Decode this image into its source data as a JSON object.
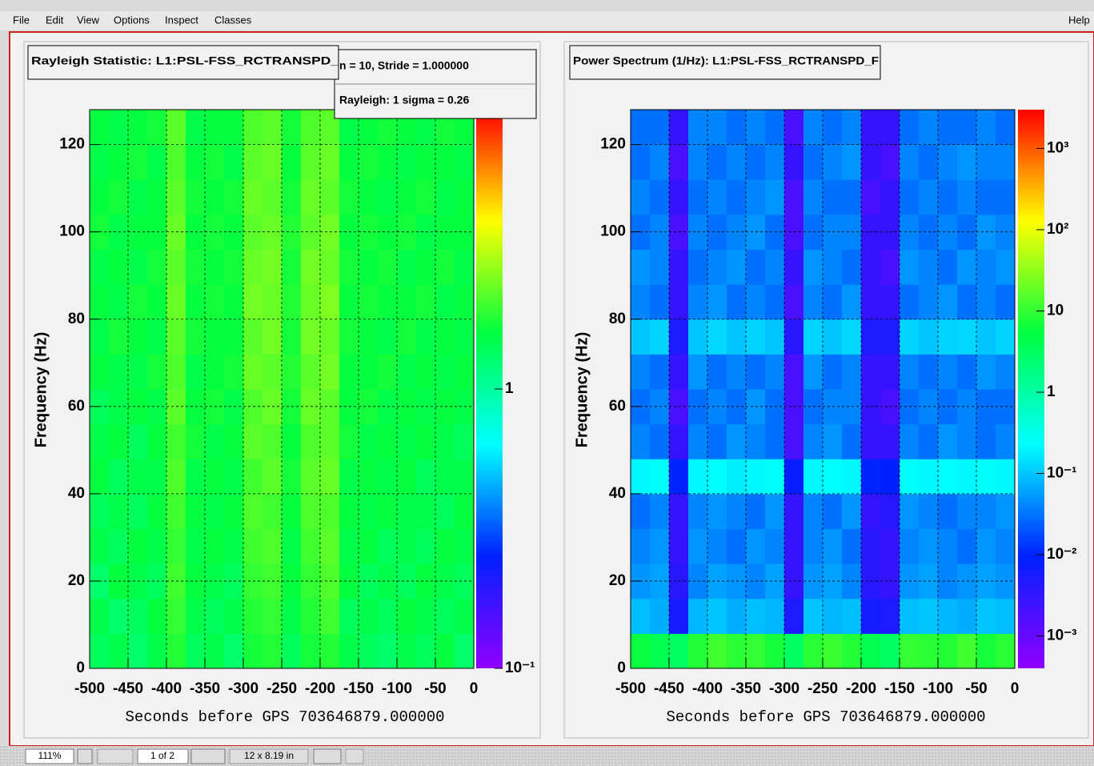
{
  "menu": [
    "File",
    "Edit",
    "View",
    "Options",
    "Inspect",
    "Classes"
  ],
  "help": "Help",
  "status_bar": {
    "zoom": "111%",
    "page": "1 of 2",
    "size": "12 x 8.19 in"
  },
  "chart_data": [
    {
      "type": "heatmap",
      "title": "Rayleigh Statistic:  L1:PSL-FSS_RCTRANSPD_",
      "stats": [
        "n = 10,  Stride = 1.000000",
        "Rayleigh: 1 sigma = 0.26"
      ],
      "x_label": "Seconds before GPS 703646879.000000",
      "y_label": "Frequency (Hz)",
      "xlim": [
        -500,
        0
      ],
      "ylim": [
        0,
        128
      ],
      "xticks": [
        -500,
        -450,
        -400,
        -350,
        -300,
        -250,
        -200,
        -150,
        -100,
        -50,
        0
      ],
      "yticks": [
        0,
        20,
        40,
        60,
        80,
        100,
        120
      ],
      "grid": true,
      "zlim": [
        0.1,
        10
      ],
      "zlog": true,
      "zticks": [
        {
          "value": 0.1,
          "label": "10⁻¹"
        },
        1
      ],
      "colors": [
        "#9000ff",
        "#0020ff",
        "#00ffff",
        "#00ff40",
        "#ffff00",
        "#ff0000"
      ],
      "xbins": [
        -500,
        -475,
        -450,
        -425,
        -400,
        -375,
        -350,
        -325,
        -300,
        -275,
        -250,
        -225,
        -200,
        -175,
        -150,
        -125,
        -100,
        -75,
        -50,
        -25,
        0
      ],
      "ybins": [
        0,
        8,
        16,
        24,
        32,
        40,
        48,
        56,
        64,
        72,
        80,
        88,
        96,
        104,
        112,
        120,
        128
      ],
      "z": [
        [
          1.4,
          1.5,
          1.3,
          1.5,
          1.8,
          1.4,
          1.5,
          1.3,
          1.7,
          1.8,
          1.4,
          1.7,
          1.8,
          1.5,
          1.4,
          1.3,
          1.5,
          1.4,
          1.6,
          1.3
        ],
        [
          1.5,
          1.3,
          1.4,
          1.6,
          1.9,
          1.5,
          1.4,
          1.5,
          1.8,
          1.9,
          1.5,
          1.8,
          2,
          1.4,
          1.5,
          1.4,
          1.6,
          1.5,
          1.4,
          1.5
        ],
        [
          1.3,
          1.6,
          1.5,
          1.4,
          2,
          1.6,
          1.5,
          1.4,
          1.9,
          2,
          1.6,
          1.9,
          2.1,
          1.6,
          1.4,
          1.5,
          1.4,
          1.6,
          1.5,
          1.4
        ],
        [
          1.5,
          1.4,
          1.6,
          1.5,
          1.9,
          1.5,
          1.6,
          1.5,
          2,
          2.1,
          1.5,
          2,
          2.2,
          1.5,
          1.6,
          1.4,
          1.5,
          1.4,
          1.6,
          1.5
        ],
        [
          1.4,
          1.5,
          1.4,
          1.6,
          2,
          1.6,
          1.5,
          1.6,
          2.1,
          2,
          1.6,
          2.1,
          2.1,
          1.6,
          1.5,
          1.6,
          1.5,
          1.5,
          1.4,
          1.6
        ],
        [
          1.6,
          1.4,
          1.5,
          1.5,
          2.1,
          1.5,
          1.6,
          1.5,
          2,
          2.2,
          1.7,
          2.2,
          2.3,
          1.5,
          1.6,
          1.5,
          1.6,
          1.4,
          1.5,
          1.5
        ],
        [
          1.5,
          1.6,
          1.4,
          1.6,
          2,
          1.7,
          1.5,
          1.6,
          2.2,
          2.1,
          1.6,
          2.1,
          2.2,
          1.7,
          1.5,
          1.6,
          1.5,
          1.6,
          1.5,
          1.4
        ],
        [
          1.4,
          1.5,
          1.6,
          1.5,
          2.2,
          1.6,
          1.7,
          1.5,
          2.1,
          2.3,
          1.7,
          2.3,
          2.2,
          1.6,
          1.7,
          1.5,
          1.6,
          1.5,
          1.6,
          1.5
        ],
        [
          1.6,
          1.5,
          1.5,
          1.7,
          2.1,
          1.5,
          1.6,
          1.7,
          2.3,
          2.2,
          1.8,
          2.2,
          2.4,
          1.6,
          1.6,
          1.7,
          1.5,
          1.6,
          1.5,
          1.6
        ],
        [
          1.5,
          1.7,
          1.6,
          1.5,
          2.2,
          1.7,
          1.6,
          1.6,
          2.2,
          2.4,
          1.7,
          2.4,
          2.3,
          1.7,
          1.6,
          1.5,
          1.7,
          1.5,
          1.6,
          1.5
        ],
        [
          1.6,
          1.5,
          1.7,
          1.6,
          2.3,
          1.6,
          1.7,
          1.6,
          2.4,
          2.3,
          1.8,
          2.3,
          2.5,
          1.6,
          1.7,
          1.6,
          1.6,
          1.7,
          1.5,
          1.6
        ],
        [
          1.5,
          1.6,
          1.5,
          1.7,
          2.2,
          1.7,
          1.6,
          1.7,
          2.3,
          2.4,
          1.7,
          2.4,
          2.3,
          1.7,
          1.6,
          1.7,
          1.5,
          1.6,
          1.7,
          1.5
        ],
        [
          1.7,
          1.5,
          1.6,
          1.6,
          2.3,
          1.6,
          1.7,
          1.6,
          2.2,
          2.3,
          1.8,
          2.2,
          2.4,
          1.6,
          1.7,
          1.6,
          1.7,
          1.5,
          1.6,
          1.6
        ],
        [
          1.6,
          1.7,
          1.5,
          1.6,
          2.2,
          1.7,
          1.6,
          1.7,
          2.3,
          2.2,
          1.7,
          2.3,
          2.2,
          1.7,
          1.6,
          1.5,
          1.6,
          1.7,
          1.5,
          1.6
        ],
        [
          1.5,
          1.6,
          1.7,
          1.5,
          2.1,
          1.6,
          1.7,
          1.5,
          2.2,
          2.3,
          1.6,
          2.2,
          2.3,
          1.6,
          1.7,
          1.6,
          1.5,
          1.6,
          1.6,
          1.5
        ],
        [
          1.6,
          1.5,
          1.6,
          1.7,
          2.2,
          1.5,
          1.6,
          1.6,
          2.1,
          2.2,
          1.7,
          2.1,
          2.2,
          1.5,
          1.6,
          1.7,
          1.6,
          1.5,
          1.7,
          1.6
        ]
      ]
    },
    {
      "type": "heatmap",
      "title": "Power Spectrum (1/Hz):  L1:PSL-FSS_RCTRANSPD_F",
      "x_label": "Seconds before GPS 703646879.000000",
      "y_label": "Frequency (Hz)",
      "xlim": [
        -500,
        0
      ],
      "ylim": [
        0,
        128
      ],
      "xticks": [
        -500,
        -450,
        -400,
        -350,
        -300,
        -250,
        -200,
        -150,
        -100,
        -50,
        0
      ],
      "yticks": [
        0,
        20,
        40,
        60,
        80,
        100,
        120
      ],
      "grid": true,
      "zlim": [
        0.0004,
        3000
      ],
      "zlog": true,
      "zticks": [
        {
          "value": 0.001,
          "label": "10⁻³"
        },
        {
          "value": 0.01,
          "label": "10⁻²"
        },
        {
          "value": 0.1,
          "label": "10⁻¹"
        },
        1,
        10,
        {
          "value": 100,
          "label": "10²"
        },
        {
          "value": 1000,
          "label": "10³"
        }
      ],
      "colors": [
        "#9000ff",
        "#0020ff",
        "#00ffff",
        "#00ff40",
        "#ffff00",
        "#ff0000"
      ],
      "xbins": [
        -500,
        -475,
        -450,
        -425,
        -400,
        -375,
        -350,
        -325,
        -300,
        -275,
        -250,
        -225,
        -200,
        -175,
        -150,
        -125,
        -100,
        -75,
        -50,
        -25,
        0
      ],
      "ybins": [
        0,
        8,
        16,
        24,
        32,
        40,
        48,
        56,
        64,
        72,
        80,
        88,
        96,
        104,
        112,
        120,
        128
      ],
      "z": [
        [
          6,
          4,
          3,
          8,
          12,
          9,
          10,
          7,
          3,
          9,
          11,
          8,
          4,
          3,
          10,
          9,
          8,
          12,
          7,
          9
        ],
        [
          0.09,
          0.07,
          0.006,
          0.08,
          0.1,
          0.07,
          0.09,
          0.08,
          0.005,
          0.1,
          0.08,
          0.09,
          0.006,
          0.005,
          0.09,
          0.1,
          0.08,
          0.07,
          0.1,
          0.09
        ],
        [
          0.05,
          0.06,
          0.004,
          0.04,
          0.06,
          0.05,
          0.04,
          0.06,
          0.003,
          0.05,
          0.06,
          0.04,
          0.004,
          0.003,
          0.05,
          0.06,
          0.04,
          0.05,
          0.06,
          0.05
        ],
        [
          0.04,
          0.05,
          0.003,
          0.05,
          0.04,
          0.03,
          0.05,
          0.04,
          0.003,
          0.04,
          0.05,
          0.03,
          0.004,
          0.003,
          0.04,
          0.05,
          0.04,
          0.03,
          0.05,
          0.04
        ],
        [
          0.03,
          0.04,
          0.003,
          0.04,
          0.05,
          0.04,
          0.03,
          0.05,
          0.003,
          0.04,
          0.03,
          0.05,
          0.003,
          0.004,
          0.05,
          0.04,
          0.03,
          0.04,
          0.04,
          0.05
        ],
        [
          0.2,
          0.25,
          0.01,
          0.2,
          0.22,
          0.18,
          0.2,
          0.25,
          0.008,
          0.2,
          0.22,
          0.2,
          0.01,
          0.009,
          0.25,
          0.2,
          0.22,
          0.2,
          0.25,
          0.2
        ],
        [
          0.04,
          0.03,
          0.003,
          0.04,
          0.03,
          0.05,
          0.04,
          0.03,
          0.002,
          0.04,
          0.05,
          0.03,
          0.003,
          0.003,
          0.04,
          0.03,
          0.05,
          0.04,
          0.03,
          0.04
        ],
        [
          0.03,
          0.04,
          0.002,
          0.03,
          0.04,
          0.03,
          0.05,
          0.03,
          0.002,
          0.03,
          0.04,
          0.04,
          0.003,
          0.002,
          0.03,
          0.04,
          0.03,
          0.04,
          0.03,
          0.03
        ],
        [
          0.04,
          0.03,
          0.003,
          0.05,
          0.03,
          0.04,
          0.03,
          0.04,
          0.002,
          0.05,
          0.03,
          0.04,
          0.003,
          0.003,
          0.04,
          0.03,
          0.04,
          0.03,
          0.05,
          0.04
        ],
        [
          0.1,
          0.12,
          0.005,
          0.1,
          0.13,
          0.1,
          0.12,
          0.1,
          0.004,
          0.12,
          0.1,
          0.13,
          0.005,
          0.005,
          0.12,
          0.1,
          0.12,
          0.13,
          0.1,
          0.12
        ],
        [
          0.04,
          0.03,
          0.003,
          0.04,
          0.05,
          0.03,
          0.04,
          0.03,
          0.002,
          0.04,
          0.03,
          0.05,
          0.003,
          0.003,
          0.03,
          0.04,
          0.05,
          0.03,
          0.04,
          0.03
        ],
        [
          0.05,
          0.04,
          0.003,
          0.03,
          0.04,
          0.05,
          0.03,
          0.04,
          0.003,
          0.05,
          0.04,
          0.03,
          0.003,
          0.002,
          0.05,
          0.04,
          0.03,
          0.05,
          0.04,
          0.05
        ],
        [
          0.03,
          0.04,
          0.002,
          0.04,
          0.03,
          0.04,
          0.05,
          0.03,
          0.002,
          0.03,
          0.04,
          0.04,
          0.003,
          0.003,
          0.04,
          0.03,
          0.04,
          0.03,
          0.05,
          0.04
        ],
        [
          0.04,
          0.03,
          0.003,
          0.03,
          0.04,
          0.03,
          0.04,
          0.05,
          0.002,
          0.04,
          0.03,
          0.03,
          0.002,
          0.003,
          0.03,
          0.04,
          0.03,
          0.04,
          0.03,
          0.03
        ],
        [
          0.03,
          0.04,
          0.002,
          0.04,
          0.03,
          0.04,
          0.03,
          0.04,
          0.003,
          0.03,
          0.04,
          0.05,
          0.003,
          0.002,
          0.04,
          0.03,
          0.04,
          0.05,
          0.04,
          0.04
        ],
        [
          0.03,
          0.03,
          0.003,
          0.04,
          0.04,
          0.03,
          0.04,
          0.03,
          0.002,
          0.04,
          0.03,
          0.04,
          0.003,
          0.003,
          0.03,
          0.04,
          0.03,
          0.03,
          0.04,
          0.03
        ]
      ]
    }
  ]
}
